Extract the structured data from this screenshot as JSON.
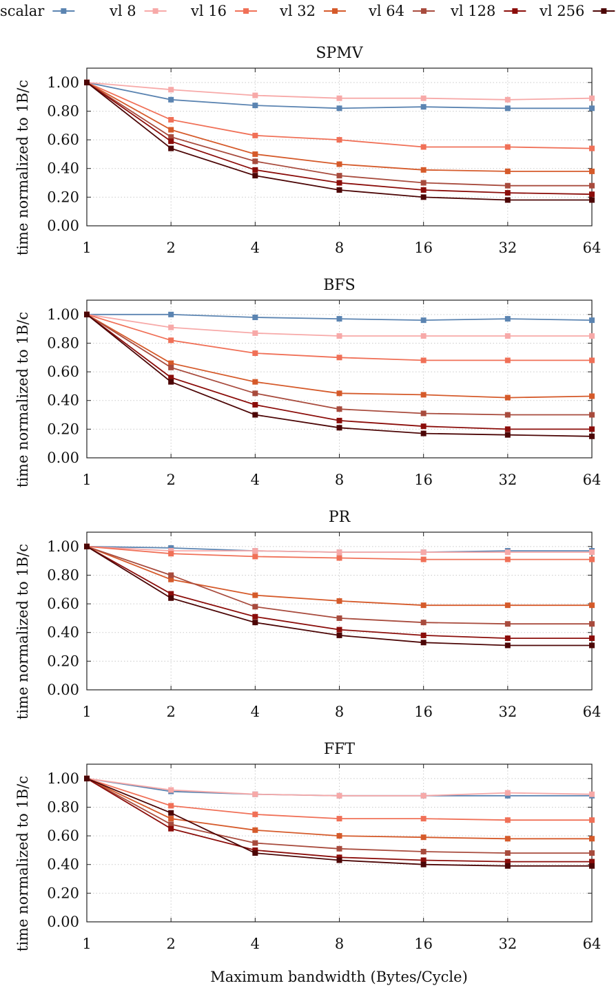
{
  "legend": [
    {
      "name": "scalar",
      "color": "#5b84b1"
    },
    {
      "name": "vl 8",
      "color": "#f7a9a8"
    },
    {
      "name": "vl 16",
      "color": "#f07057"
    },
    {
      "name": "vl 32",
      "color": "#d55a2a"
    },
    {
      "name": "vl 64",
      "color": "#a84b3d"
    },
    {
      "name": "vl 128",
      "color": "#8b0d0a"
    },
    {
      "name": "vl 256",
      "color": "#4c0606"
    }
  ],
  "chart_data": [
    {
      "type": "line",
      "title": "SPMV",
      "x": [
        "1",
        "2",
        "4",
        "8",
        "16",
        "32",
        "64"
      ],
      "xlabel": "Maximum bandwidth (Bytes/Cycle)",
      "ylabel": "time normalized to 1B/c",
      "ylim": [
        0,
        1.1
      ],
      "yticks": [
        "0.00",
        "0.20",
        "0.40",
        "0.60",
        "0.80",
        "1.00"
      ],
      "series": [
        {
          "name": "scalar",
          "values": [
            1.0,
            0.88,
            0.84,
            0.82,
            0.83,
            0.82,
            0.82
          ]
        },
        {
          "name": "vl 8",
          "values": [
            1.0,
            0.95,
            0.91,
            0.89,
            0.89,
            0.88,
            0.89
          ]
        },
        {
          "name": "vl 16",
          "values": [
            1.0,
            0.74,
            0.63,
            0.6,
            0.55,
            0.55,
            0.54
          ]
        },
        {
          "name": "vl 32",
          "values": [
            1.0,
            0.67,
            0.5,
            0.43,
            0.39,
            0.38,
            0.38
          ]
        },
        {
          "name": "vl 64",
          "values": [
            1.0,
            0.62,
            0.45,
            0.35,
            0.3,
            0.28,
            0.28
          ]
        },
        {
          "name": "vl 128",
          "values": [
            1.0,
            0.59,
            0.39,
            0.3,
            0.25,
            0.23,
            0.22
          ]
        },
        {
          "name": "vl 256",
          "values": [
            1.0,
            0.54,
            0.35,
            0.25,
            0.2,
            0.18,
            0.18
          ]
        }
      ]
    },
    {
      "type": "line",
      "title": "BFS",
      "x": [
        "1",
        "2",
        "4",
        "8",
        "16",
        "32",
        "64"
      ],
      "xlabel": "Maximum bandwidth (Bytes/Cycle)",
      "ylabel": "time normalized to 1B/c",
      "ylim": [
        0,
        1.1
      ],
      "yticks": [
        "0.00",
        "0.20",
        "0.40",
        "0.60",
        "0.80",
        "1.00"
      ],
      "series": [
        {
          "name": "scalar",
          "values": [
            1.0,
            1.0,
            0.98,
            0.97,
            0.96,
            0.97,
            0.96
          ]
        },
        {
          "name": "vl 8",
          "values": [
            1.0,
            0.91,
            0.87,
            0.85,
            0.85,
            0.85,
            0.85
          ]
        },
        {
          "name": "vl 16",
          "values": [
            1.0,
            0.82,
            0.73,
            0.7,
            0.68,
            0.68,
            0.68
          ]
        },
        {
          "name": "vl 32",
          "values": [
            1.0,
            0.66,
            0.53,
            0.45,
            0.44,
            0.42,
            0.43
          ]
        },
        {
          "name": "vl 64",
          "values": [
            1.0,
            0.63,
            0.45,
            0.34,
            0.31,
            0.3,
            0.3
          ]
        },
        {
          "name": "vl 128",
          "values": [
            1.0,
            0.56,
            0.37,
            0.26,
            0.22,
            0.2,
            0.2
          ]
        },
        {
          "name": "vl 256",
          "values": [
            1.0,
            0.53,
            0.3,
            0.21,
            0.17,
            0.16,
            0.15
          ]
        }
      ]
    },
    {
      "type": "line",
      "title": "PR",
      "x": [
        "1",
        "2",
        "4",
        "8",
        "16",
        "32",
        "64"
      ],
      "xlabel": "Maximum bandwidth (Bytes/Cycle)",
      "ylabel": "time normalized to 1B/c",
      "ylim": [
        0,
        1.1
      ],
      "yticks": [
        "0.00",
        "0.20",
        "0.40",
        "0.60",
        "0.80",
        "1.00"
      ],
      "series": [
        {
          "name": "scalar",
          "values": [
            1.0,
            0.99,
            0.97,
            0.96,
            0.96,
            0.97,
            0.97
          ]
        },
        {
          "name": "vl 8",
          "values": [
            1.0,
            0.97,
            0.97,
            0.96,
            0.96,
            0.96,
            0.96
          ]
        },
        {
          "name": "vl 16",
          "values": [
            1.0,
            0.95,
            0.93,
            0.92,
            0.91,
            0.91,
            0.91
          ]
        },
        {
          "name": "vl 32",
          "values": [
            1.0,
            0.77,
            0.66,
            0.62,
            0.59,
            0.59,
            0.59
          ]
        },
        {
          "name": "vl 64",
          "values": [
            1.0,
            0.8,
            0.58,
            0.5,
            0.47,
            0.46,
            0.46
          ]
        },
        {
          "name": "vl 128",
          "values": [
            1.0,
            0.67,
            0.51,
            0.42,
            0.38,
            0.36,
            0.36
          ]
        },
        {
          "name": "vl 256",
          "values": [
            1.0,
            0.64,
            0.47,
            0.38,
            0.33,
            0.31,
            0.31
          ]
        }
      ]
    },
    {
      "type": "line",
      "title": "FFT",
      "x": [
        "1",
        "2",
        "4",
        "8",
        "16",
        "32",
        "64"
      ],
      "xlabel": "Maximum bandwidth (Bytes/Cycle)",
      "ylabel": "time normalized to 1B/c",
      "ylim": [
        0,
        1.1
      ],
      "yticks": [
        "0.00",
        "0.20",
        "0.40",
        "0.60",
        "0.80",
        "1.00"
      ],
      "series": [
        {
          "name": "scalar",
          "values": [
            1.0,
            0.91,
            0.89,
            0.88,
            0.88,
            0.88,
            0.88
          ]
        },
        {
          "name": "vl 8",
          "values": [
            1.0,
            0.92,
            0.89,
            0.88,
            0.88,
            0.9,
            0.89
          ]
        },
        {
          "name": "vl 16",
          "values": [
            1.0,
            0.81,
            0.75,
            0.72,
            0.72,
            0.71,
            0.71
          ]
        },
        {
          "name": "vl 32",
          "values": [
            1.0,
            0.72,
            0.64,
            0.6,
            0.59,
            0.58,
            0.58
          ]
        },
        {
          "name": "vl 64",
          "values": [
            1.0,
            0.68,
            0.55,
            0.51,
            0.49,
            0.48,
            0.48
          ]
        },
        {
          "name": "vl 128",
          "values": [
            1.0,
            0.65,
            0.5,
            0.45,
            0.43,
            0.42,
            0.42
          ]
        },
        {
          "name": "vl 256",
          "values": [
            1.0,
            0.76,
            0.48,
            0.43,
            0.4,
            0.39,
            0.39
          ]
        }
      ]
    }
  ]
}
